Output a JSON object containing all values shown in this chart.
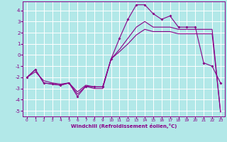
{
  "xlabel": "Windchill (Refroidissement éolien,°C)",
  "bg_color": "#b2e8e8",
  "line_color": "#880088",
  "grid_color": "#ffffff",
  "xlim": [
    -0.5,
    23.5
  ],
  "ylim": [
    -5.5,
    4.8
  ],
  "yticks": [
    -5,
    -4,
    -3,
    -2,
    -1,
    0,
    1,
    2,
    3,
    4
  ],
  "xticks": [
    0,
    1,
    2,
    3,
    4,
    5,
    6,
    7,
    8,
    9,
    10,
    11,
    12,
    13,
    14,
    15,
    16,
    17,
    18,
    19,
    20,
    21,
    22,
    23
  ],
  "line1_x": [
    0,
    1,
    2,
    3,
    4,
    5,
    6,
    7,
    8,
    9,
    10,
    11,
    12,
    13,
    14,
    15,
    16,
    17,
    18,
    19,
    20,
    21,
    22,
    23
  ],
  "line1_y": [
    -2.0,
    -1.3,
    -2.5,
    -2.6,
    -2.7,
    -2.5,
    -3.7,
    -2.8,
    -2.85,
    -2.85,
    -0.35,
    1.5,
    3.2,
    4.5,
    4.5,
    3.7,
    3.2,
    3.5,
    2.5,
    2.5,
    2.5,
    -0.7,
    -1.0,
    -2.5
  ],
  "line2_x": [
    0,
    1,
    2,
    3,
    4,
    5,
    6,
    7,
    8,
    9,
    10,
    11,
    12,
    13,
    14,
    15,
    16,
    17,
    18,
    19,
    20,
    21,
    22,
    23
  ],
  "line2_y": [
    -2.0,
    -1.3,
    -2.5,
    -2.6,
    -2.7,
    -2.5,
    -3.5,
    -2.8,
    -3.0,
    -3.0,
    -0.35,
    0.5,
    1.5,
    2.5,
    3.0,
    2.5,
    2.5,
    2.5,
    2.3,
    2.3,
    2.3,
    2.3,
    2.3,
    -5.1
  ],
  "line3_x": [
    0,
    1,
    2,
    3,
    4,
    5,
    6,
    7,
    8,
    9,
    10,
    11,
    12,
    13,
    14,
    15,
    16,
    17,
    18,
    19,
    20,
    21,
    22,
    23
  ],
  "line3_y": [
    -2.0,
    -1.5,
    -2.3,
    -2.5,
    -2.6,
    -2.5,
    -3.3,
    -2.7,
    -2.85,
    -2.85,
    -0.35,
    0.3,
    1.0,
    1.8,
    2.3,
    2.1,
    2.1,
    2.1,
    1.9,
    1.9,
    1.9,
    1.9,
    1.9,
    -5.1
  ]
}
